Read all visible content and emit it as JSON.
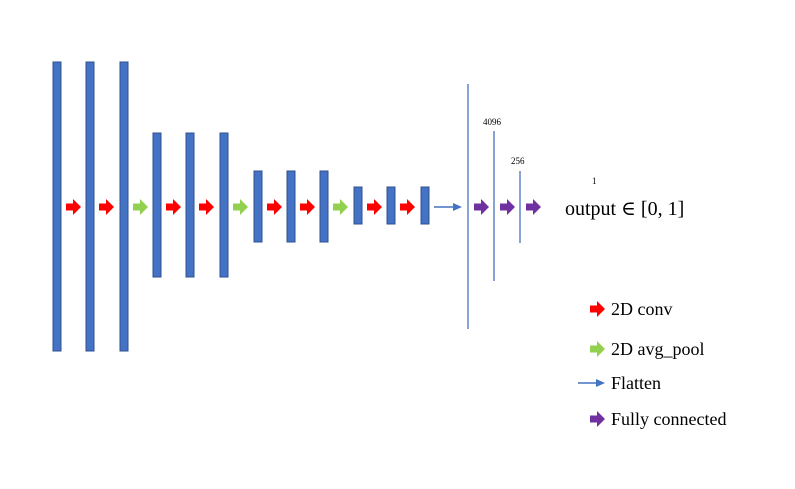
{
  "diagram": {
    "size_labels": {
      "fc1": "4096",
      "fc2": "256",
      "out": "1"
    },
    "output_label": "output ∈ [0, 1]",
    "legend": [
      {
        "label": "2D conv",
        "kind": "conv-arrow"
      },
      {
        "label": "2D avg_pool",
        "kind": "pool-arrow"
      },
      {
        "label": "Flatten",
        "kind": "flatten-arrow"
      },
      {
        "label": "Fully connected",
        "kind": "fc-arrow"
      }
    ],
    "colors": {
      "layer_fill": "#4472C4",
      "layer_stroke": "#2F528F",
      "conv": "#FF0000",
      "pool": "#92D050",
      "flatten": "#4472C4",
      "fully_connected": "#7030A0"
    }
  }
}
